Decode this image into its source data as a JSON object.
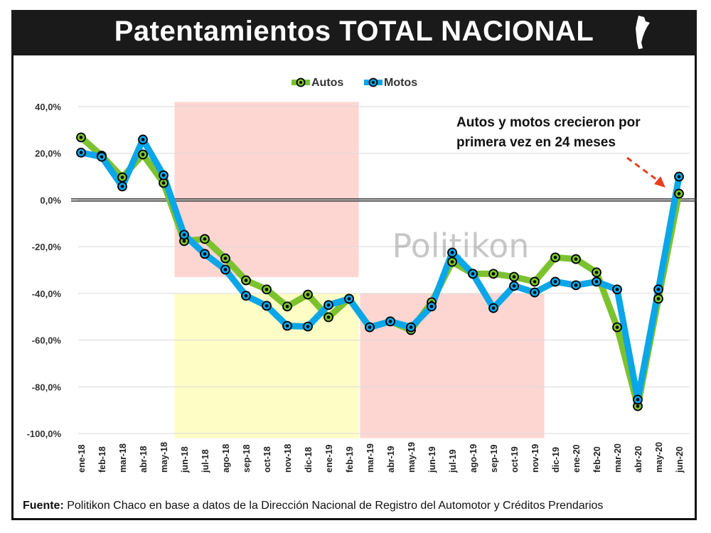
{
  "header": {
    "title": "Patentamientos TOTAL NACIONAL"
  },
  "footer": {
    "source_label": "Fuente:",
    "source_text": "Politikon Chaco en base a datos de la Dirección Nacional de Registro del Automotor y Créditos Prendarios"
  },
  "watermark": "Politikon",
  "chart_data": {
    "type": "line",
    "title": "Patentamientos TOTAL NACIONAL",
    "xlabel": "",
    "ylabel": "",
    "ylim": [
      -100,
      40
    ],
    "yticks": [
      40,
      20,
      0,
      -20,
      -40,
      -60,
      -80,
      -100
    ],
    "ytick_labels": [
      "40,0%",
      "20,0%",
      "0,0%",
      "-20,0%",
      "-40,0%",
      "-60,0%",
      "-80,0%",
      "-100,0%"
    ],
    "grid": true,
    "legend_position": "top-center",
    "categories": [
      "ene-18",
      "feb-18",
      "mar-18",
      "abr-18",
      "may-18",
      "jun-18",
      "jul-18",
      "ago-18",
      "sep-18",
      "oct-18",
      "nov-18",
      "dic-18",
      "ene-19",
      "feb-19",
      "mar-19",
      "abr-19",
      "may-19",
      "jun-19",
      "jul-19",
      "ago-19",
      "sep-19",
      "oct-19",
      "nov-19",
      "dic-19",
      "ene-20",
      "feb-20",
      "mar-20",
      "abr-20",
      "may-20",
      "jun-20"
    ],
    "series": [
      {
        "name": "Autos",
        "color": "#7cc22e",
        "values": [
          26.8,
          19.0,
          9.7,
          19.5,
          7.3,
          -17.6,
          -16.7,
          -25.0,
          -34.4,
          -38.3,
          -45.6,
          -40.5,
          -50.2,
          -42.3,
          -54.5,
          -52.0,
          -55.7,
          -43.8,
          -26.5,
          -31.6,
          -31.6,
          -32.9,
          -35.0,
          -24.6,
          -25.3,
          -31.0,
          -54.5,
          -88.3,
          -42.3,
          2.7
        ]
      },
      {
        "name": "Motos",
        "color": "#0aa6e8",
        "values": [
          20.3,
          18.5,
          5.8,
          25.9,
          10.6,
          -14.9,
          -23.1,
          -29.8,
          -41.0,
          -45.3,
          -53.9,
          -54.2,
          -45.0,
          -42.3,
          -54.5,
          -52.0,
          -54.5,
          -45.6,
          -22.5,
          -31.6,
          -46.3,
          -36.8,
          -39.6,
          -35.0,
          -36.5,
          -35.0,
          -38.3,
          -85.5,
          -38.3,
          10.0
        ]
      }
    ],
    "shaded_regions": [
      {
        "color": "#fdd6d2",
        "from_month": "jun-18",
        "to_month": "feb-19",
        "ymin": -33,
        "ymax": 42
      },
      {
        "color": "#fefdc6",
        "from_month": "jun-18",
        "to_month": "feb-19",
        "ymin": -102,
        "ymax": -40
      },
      {
        "color": "#fdd6d2",
        "from_month": "mar-19",
        "to_month": "nov-19",
        "ymin": -102,
        "ymax": -40
      }
    ],
    "annotation": {
      "lines": [
        "Autos y motos crecieron por",
        "primera vez en 24 meses"
      ],
      "points_to": "jun-20",
      "arrow_color": "#e8401c"
    }
  }
}
